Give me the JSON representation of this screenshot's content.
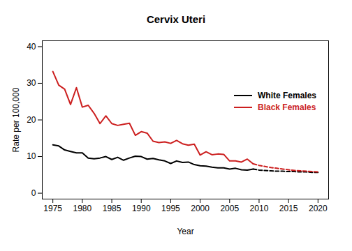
{
  "chart_data": {
    "type": "line",
    "title": "Cervix Uteri",
    "x_label": "Year",
    "y_label": "Rate per 100,000",
    "x": [
      1975,
      1976,
      1977,
      1978,
      1979,
      1980,
      1981,
      1982,
      1983,
      1984,
      1985,
      1986,
      1987,
      1988,
      1989,
      1990,
      1991,
      1992,
      1993,
      1994,
      1995,
      1996,
      1997,
      1998,
      1999,
      2000,
      2001,
      2002,
      2003,
      2004,
      2005,
      2006,
      2007,
      2008,
      2009,
      2010,
      2011,
      2012,
      2013,
      2014,
      2015,
      2016,
      2017,
      2018,
      2019,
      2020
    ],
    "xlim": [
      1973.2,
      2021.8
    ],
    "xticks": [
      1975,
      1980,
      1985,
      1990,
      1995,
      2000,
      2005,
      2010,
      2015,
      2020
    ],
    "ylim": [
      -1.6,
      41.6
    ],
    "yticks": [
      0,
      10,
      20,
      30,
      40
    ],
    "legend": "right",
    "series": [
      {
        "name": "White Females",
        "color": "#000000",
        "line_style": "solid",
        "values": [
          13.2,
          12.9,
          11.8,
          11.4,
          11.0,
          11.0,
          9.6,
          9.4,
          9.6,
          10.0,
          9.2,
          9.8,
          9.0,
          9.6,
          10.1,
          10.0,
          9.3,
          9.5,
          9.1,
          8.8,
          8.1,
          8.8,
          8.4,
          8.5,
          7.8,
          7.5,
          7.4,
          7.1,
          6.9,
          6.9,
          6.6,
          6.8,
          6.4,
          6.3,
          6.6,
          null,
          null,
          null,
          null,
          null,
          null,
          null,
          null,
          null,
          null,
          null
        ],
        "projection": {
          "line_style": "dashed",
          "values": [
            null,
            null,
            null,
            null,
            null,
            null,
            null,
            null,
            null,
            null,
            null,
            null,
            null,
            null,
            null,
            null,
            null,
            null,
            null,
            null,
            null,
            null,
            null,
            null,
            null,
            null,
            null,
            null,
            null,
            null,
            null,
            null,
            null,
            null,
            6.6,
            6.3,
            6.2,
            6.1,
            6.0,
            6.0,
            5.9,
            5.9,
            5.8,
            5.8,
            5.7,
            5.7
          ]
        }
      },
      {
        "name": "Black Females",
        "color": "#cc1f1f",
        "line_style": "solid",
        "values": [
          33.2,
          29.5,
          28.4,
          24.2,
          28.8,
          23.5,
          24.0,
          21.8,
          19.0,
          21.1,
          19.0,
          18.5,
          18.8,
          19.1,
          15.8,
          16.8,
          16.4,
          14.2,
          13.8,
          14.0,
          13.6,
          14.4,
          13.5,
          13.1,
          13.4,
          10.4,
          11.3,
          10.5,
          10.7,
          10.6,
          8.8,
          8.8,
          8.5,
          9.3,
          8.0,
          null,
          null,
          null,
          null,
          null,
          null,
          null,
          null,
          null,
          null,
          null
        ],
        "projection": {
          "line_style": "dashed",
          "values": [
            null,
            null,
            null,
            null,
            null,
            null,
            null,
            null,
            null,
            null,
            null,
            null,
            null,
            null,
            null,
            null,
            null,
            null,
            null,
            null,
            null,
            null,
            null,
            null,
            null,
            null,
            null,
            null,
            null,
            null,
            null,
            null,
            null,
            null,
            8.0,
            7.6,
            7.3,
            7.0,
            6.8,
            6.6,
            6.4,
            6.2,
            6.1,
            6.0,
            5.9,
            5.8
          ]
        }
      }
    ]
  }
}
